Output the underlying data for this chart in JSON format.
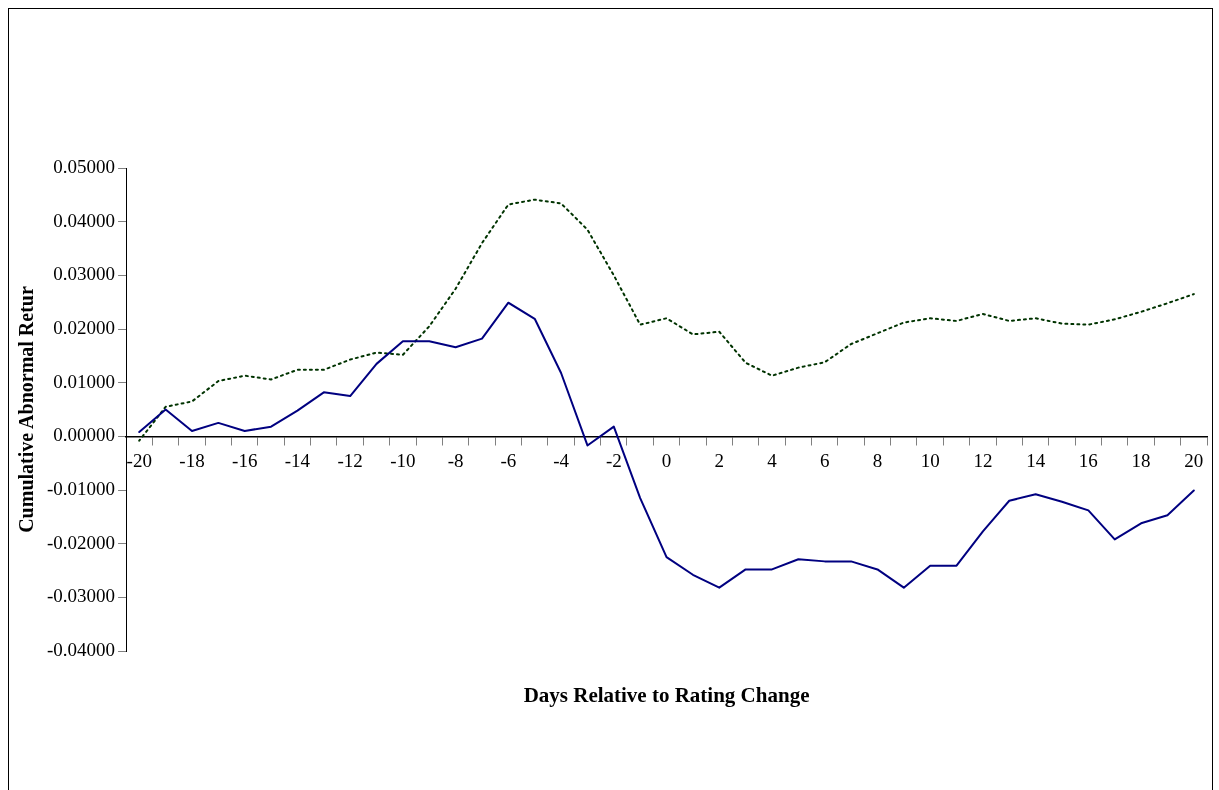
{
  "chart_data": {
    "type": "line",
    "xlabel": "Days Relative to Rating Change",
    "ylabel": "Cumulative Abnormal Retur",
    "categories": [
      "-20",
      null,
      "-18",
      null,
      "-16",
      null,
      "-14",
      null,
      "-12",
      null,
      "-10",
      null,
      "-8",
      null,
      "-6",
      null,
      "-4",
      null,
      "-2",
      null,
      "0",
      null,
      "2",
      null,
      "4",
      null,
      "6",
      null,
      "8",
      null,
      "10",
      null,
      "12",
      null,
      "14",
      null,
      "16",
      null,
      "18",
      null,
      "20"
    ],
    "series": [
      {
        "color": "#000080",
        "line_style": "solid",
        "values": [
          0.0008,
          0.005,
          0.001,
          0.0025,
          0.001,
          0.0018,
          0.0048,
          0.0082,
          0.0075,
          0.0135,
          0.0177,
          0.0177,
          0.0166,
          0.0182,
          0.0249,
          0.0219,
          0.0118,
          -0.0017,
          0.0018,
          -0.0115,
          -0.0225,
          -0.0258,
          -0.0282,
          -0.0248,
          -0.0248,
          -0.0229,
          -0.0233,
          -0.0233,
          -0.0248,
          -0.0282,
          -0.0241,
          -0.0241,
          -0.0177,
          -0.012,
          -0.0108,
          -0.0122,
          -0.0138,
          -0.0192,
          -0.0162,
          -0.0147,
          -0.0101
        ]
      },
      {
        "color": "#003300",
        "line_style": "dotted",
        "values": [
          -0.0008,
          0.0055,
          0.0065,
          0.0103,
          0.0113,
          0.0106,
          0.0124,
          0.0124,
          0.0143,
          0.0156,
          0.0152,
          0.0205,
          0.0275,
          0.036,
          0.0432,
          0.0441,
          0.0434,
          0.0385,
          0.03,
          0.0208,
          0.022,
          0.019,
          0.0195,
          0.0137,
          0.0113,
          0.0128,
          0.0138,
          0.0172,
          0.0192,
          0.0212,
          0.022,
          0.0215,
          0.0228,
          0.0215,
          0.022,
          0.021,
          0.0208,
          0.0218,
          0.0232,
          0.0248,
          0.0265
        ]
      }
    ],
    "ylim": [
      -0.04,
      0.05
    ],
    "yticks": [
      {
        "value": -0.04,
        "label": "-0.04000"
      },
      {
        "value": -0.03,
        "label": "-0.03000"
      },
      {
        "value": -0.02,
        "label": "-0.02000"
      },
      {
        "value": -0.01,
        "label": "-0.01000"
      },
      {
        "value": 0,
        "label": "0.00000"
      },
      {
        "value": 0.01,
        "label": "0.01000"
      },
      {
        "value": 0.02,
        "label": "0.02000"
      },
      {
        "value": 0.03,
        "label": "0.03000"
      },
      {
        "value": 0.04,
        "label": "0.04000"
      },
      {
        "value": 0.05,
        "label": "0.05000"
      }
    ],
    "grid": false,
    "legend": false,
    "marker": "none"
  }
}
